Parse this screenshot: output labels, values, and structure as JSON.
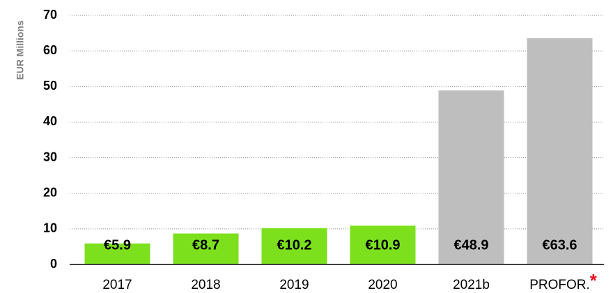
{
  "chart_data": {
    "type": "bar",
    "y_label": "EUR Millions",
    "categories": [
      "2017",
      "2018",
      "2019",
      "2020",
      "2021b",
      "PROFOR."
    ],
    "values": [
      5.9,
      8.7,
      10.2,
      10.9,
      48.9,
      63.6
    ],
    "value_labels": [
      "€5.9",
      "€8.7",
      "€10.2",
      "€10.9",
      "€48.9",
      "€63.6"
    ],
    "colors": [
      "#7ce01c",
      "#7ce01c",
      "#7ce01c",
      "#7ce01c",
      "#bebebe",
      "#bebebe"
    ],
    "annotation": "*",
    "annotation_color": "#e8141e",
    "ylim": [
      0,
      70
    ],
    "yticks": [
      0,
      10,
      20,
      30,
      40,
      50,
      60,
      70
    ],
    "grid": true
  }
}
